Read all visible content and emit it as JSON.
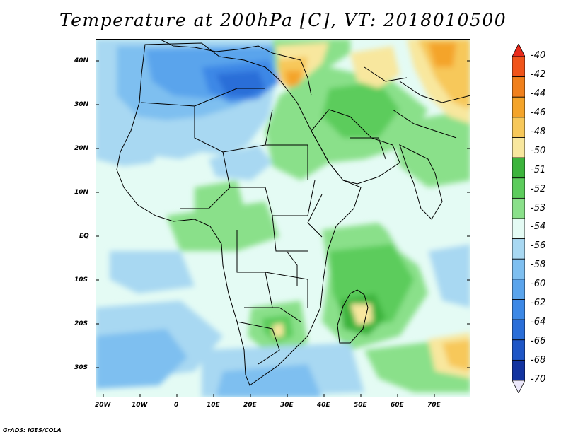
{
  "title": "Temperature at 200hPa [C], VT: 2018010500",
  "credit": "GrADS: IGES/COLA",
  "map": {
    "lat_labels": [
      "40N",
      "30N",
      "20N",
      "10N",
      "EQ",
      "10S",
      "20S",
      "30S"
    ],
    "lon_labels": [
      "20W",
      "10W",
      "0",
      "10E",
      "20E",
      "30E",
      "40E",
      "50E",
      "60E",
      "70E"
    ]
  },
  "colorbar": {
    "labels": [
      "-40",
      "-42",
      "-44",
      "-46",
      "-48",
      "-50",
      "-51",
      "-52",
      "-53",
      "-54",
      "-56",
      "-58",
      "-60",
      "-62",
      "-64",
      "-66",
      "-68",
      "-70"
    ],
    "colors": [
      "#e82a1a",
      "#f0541a",
      "#f0801c",
      "#f4a42a",
      "#f7c85a",
      "#f8e79e",
      "#3cb43c",
      "#5ccc5c",
      "#8ae08a",
      "#e4fbf4",
      "#a8d8f2",
      "#7ebff0",
      "#5aa4ec",
      "#3c88e6",
      "#2a6ed8",
      "#1e56c6",
      "#1233a0",
      "#0a1a78"
    ]
  }
}
